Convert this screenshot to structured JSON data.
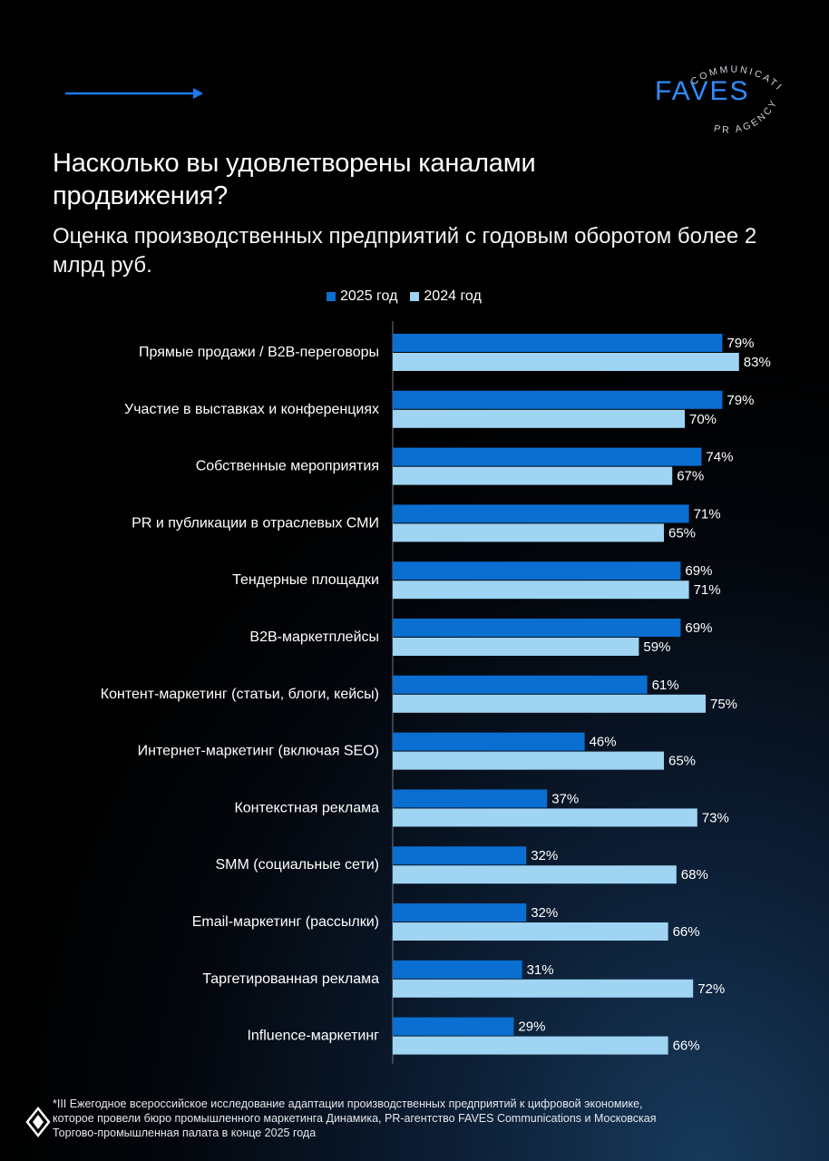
{
  "brand": {
    "name": "FAVES",
    "ring_top": "COMMUNICATIONS",
    "ring_bottom": "PR AGENCY"
  },
  "title": "Насколько вы удовлетворены каналами продвижения?",
  "subtitle": "Оценка производственных предприятий с годовым оборотом более 2 млрд руб.",
  "legend": [
    {
      "label": "2025 год",
      "color": "#0a6fd1"
    },
    {
      "label": "2024 год",
      "color": "#9fd4f2"
    }
  ],
  "chart_data": {
    "type": "bar",
    "orientation": "horizontal",
    "categories": [
      "Прямые продажи / B2B-переговоры",
      "Участие в выставках и конференциях",
      "Собственные мероприятия",
      "PR и публикации в отраслевых СМИ",
      "Тендерные площадки",
      "B2B-маркетплейсы",
      "Контент-маркетинг (статьи, блоги, кейсы)",
      "Интернет-маркетинг (включая SEO)",
      "Контекстная реклама",
      "SMM (социальные сети)",
      "Email-маркетинг (рассылки)",
      "Таргетированная реклама",
      "Influence-маркетинг"
    ],
    "series": [
      {
        "name": "2025 год",
        "color": "#0a6fd1",
        "values": [
          79,
          79,
          74,
          71,
          69,
          69,
          61,
          46,
          37,
          32,
          32,
          31,
          29
        ]
      },
      {
        "name": "2024 год",
        "color": "#9fd4f2",
        "values": [
          83,
          70,
          67,
          65,
          71,
          59,
          75,
          65,
          73,
          68,
          66,
          72,
          66
        ]
      }
    ],
    "value_suffix": "%",
    "xlim": [
      0,
      100
    ],
    "grid": false,
    "legend_position": "top"
  },
  "footnote": "*III Ежегодное всероссийское исследование адаптации производственных предприятий к цифровой экономике,\nкоторое провели бюро промышленного маркетинга Динамика, PR-агентство FAVES Communications и Московская\nТоргово-промышленная палата в конце 2025 года"
}
